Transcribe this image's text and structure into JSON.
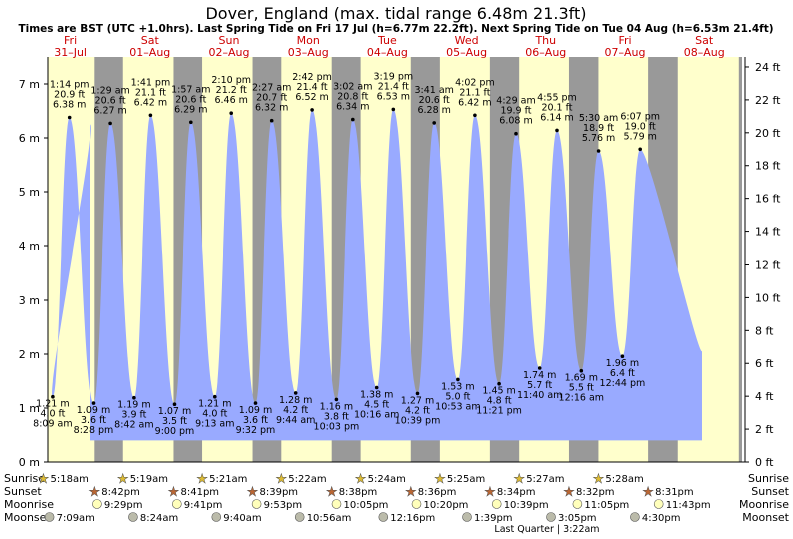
{
  "title": "Dover, England (max. tidal range 6.48m 21.3ft)",
  "subtitle": "Times are BST (UTC +1.0hrs). Last Spring Tide on Fri 17 Jul (h=6.77m 22.2ft). Next Spring Tide on Tue 04 Aug (h=6.53m 21.4ft)",
  "colors": {
    "night": "#999999",
    "day": "#ffffcc",
    "tide": "#99aaff",
    "day_label": "#cc0000",
    "sun_icon": "#ddbb33",
    "sunset_icon": "#bb6633",
    "moon_icon": "#ffffbb",
    "moonset_icon": "#bbbbaa"
  },
  "chart_data": {
    "type": "area",
    "y_left_label_unit": "m",
    "y_right_label_unit": "ft",
    "y_left_ticks": [
      "0 m",
      "1 m",
      "2 m",
      "3 m",
      "4 m",
      "5 m",
      "6 m",
      "7 m"
    ],
    "y_right_ticks": [
      "0 ft",
      "2 ft",
      "4 ft",
      "6 ft",
      "8 ft",
      "10 ft",
      "12 ft",
      "14 ft",
      "16 ft",
      "18 ft",
      "20 ft",
      "22 ft",
      "24 ft"
    ],
    "ylim": [
      0,
      7.5
    ],
    "days": [
      {
        "dow": "Fri",
        "date": "31–Jul"
      },
      {
        "dow": "Sat",
        "date": "01–Aug"
      },
      {
        "dow": "Sun",
        "date": "02–Aug"
      },
      {
        "dow": "Mon",
        "date": "03–Aug"
      },
      {
        "dow": "Tue",
        "date": "04–Aug"
      },
      {
        "dow": "Wed",
        "date": "05–Aug"
      },
      {
        "dow": "Thu",
        "date": "06–Aug"
      },
      {
        "dow": "Fri",
        "date": "07–Aug"
      },
      {
        "dow": "Sat",
        "date": "08–Aug"
      }
    ],
    "daylight": [
      [
        "05:18",
        "20:42"
      ],
      [
        "05:19",
        "20:41"
      ],
      [
        "05:21",
        "20:39"
      ],
      [
        "05:22",
        "20:38"
      ],
      [
        "05:24",
        "20:36"
      ],
      [
        "05:25",
        "20:34"
      ],
      [
        "05:27",
        "20:32"
      ],
      [
        "05:28",
        "20:31"
      ],
      [
        "05:30",
        "24:00"
      ]
    ],
    "tides": [
      {
        "day": 0,
        "time": "08:09",
        "h": 1.21,
        "type": "low",
        "lines": [
          "1.21 m",
          "4.0 ft",
          "8:09 am"
        ]
      },
      {
        "day": 0,
        "time": "13:14",
        "h": 6.38,
        "type": "high",
        "lines": [
          "1:14 pm",
          "20.9 ft",
          "6.38 m"
        ]
      },
      {
        "day": 0,
        "time": "20:28",
        "h": 1.09,
        "type": "low",
        "lines": [
          "1.09 m",
          "3.6 ft",
          "8:28 pm"
        ]
      },
      {
        "day": 1,
        "time": "01:29",
        "h": 6.27,
        "type": "high",
        "lines": [
          "1:29 am",
          "20.6 ft",
          "6.27 m"
        ]
      },
      {
        "day": 1,
        "time": "08:42",
        "h": 1.19,
        "type": "low",
        "lines": [
          "1.19 m",
          "3.9 ft",
          "8:42 am"
        ]
      },
      {
        "day": 1,
        "time": "13:41",
        "h": 6.42,
        "type": "high",
        "lines": [
          "1:41 pm",
          "21.1 ft",
          "6.42 m"
        ]
      },
      {
        "day": 1,
        "time": "21:00",
        "h": 1.07,
        "type": "low",
        "lines": [
          "1.07 m",
          "3.5 ft",
          "9:00 pm"
        ]
      },
      {
        "day": 2,
        "time": "01:57",
        "h": 6.29,
        "type": "high",
        "lines": [
          "1:57 am",
          "20.6 ft",
          "6.29 m"
        ]
      },
      {
        "day": 2,
        "time": "09:13",
        "h": 1.21,
        "type": "low",
        "lines": [
          "1.21 m",
          "4.0 ft",
          "9:13 am"
        ]
      },
      {
        "day": 2,
        "time": "14:10",
        "h": 6.46,
        "type": "high",
        "lines": [
          "2:10 pm",
          "21.2 ft",
          "6.46 m"
        ]
      },
      {
        "day": 2,
        "time": "21:32",
        "h": 1.09,
        "type": "low",
        "lines": [
          "1.09 m",
          "3.6 ft",
          "9:32 pm"
        ]
      },
      {
        "day": 3,
        "time": "02:27",
        "h": 6.32,
        "type": "high",
        "lines": [
          "2:27 am",
          "20.7 ft",
          "6.32 m"
        ]
      },
      {
        "day": 3,
        "time": "09:44",
        "h": 1.28,
        "type": "low",
        "lines": [
          "1.28 m",
          "4.2 ft",
          "9:44 am"
        ]
      },
      {
        "day": 3,
        "time": "14:42",
        "h": 6.52,
        "type": "high",
        "lines": [
          "2:42 pm",
          "21.4 ft",
          "6.52 m"
        ]
      },
      {
        "day": 3,
        "time": "22:03",
        "h": 1.16,
        "type": "low",
        "lines": [
          "1.16 m",
          "3.8 ft",
          "10:03 pm"
        ]
      },
      {
        "day": 4,
        "time": "03:02",
        "h": 6.34,
        "type": "high",
        "lines": [
          "3:02 am",
          "20.8 ft",
          "6.34 m"
        ]
      },
      {
        "day": 4,
        "time": "10:16",
        "h": 1.38,
        "type": "low",
        "lines": [
          "1.38 m",
          "4.5 ft",
          "10:16 am"
        ]
      },
      {
        "day": 4,
        "time": "15:19",
        "h": 6.53,
        "type": "high",
        "lines": [
          "3:19 pm",
          "21.4 ft",
          "6.53 m"
        ]
      },
      {
        "day": 4,
        "time": "22:39",
        "h": 1.27,
        "type": "low",
        "lines": [
          "1.27 m",
          "4.2 ft",
          "10:39 pm"
        ]
      },
      {
        "day": 5,
        "time": "03:41",
        "h": 6.28,
        "type": "high",
        "lines": [
          "3:41 am",
          "20.6 ft",
          "6.28 m"
        ]
      },
      {
        "day": 5,
        "time": "10:53",
        "h": 1.53,
        "type": "low",
        "lines": [
          "1.53 m",
          "5.0 ft",
          "10:53 am"
        ]
      },
      {
        "day": 5,
        "time": "16:02",
        "h": 6.42,
        "type": "high",
        "lines": [
          "4:02 pm",
          "21.1 ft",
          "6.42 m"
        ]
      },
      {
        "day": 5,
        "time": "23:21",
        "h": 1.45,
        "type": "low",
        "lines": [
          "1.45 m",
          "4.8 ft",
          "11:21 pm"
        ]
      },
      {
        "day": 6,
        "time": "04:29",
        "h": 6.08,
        "type": "high",
        "lines": [
          "4:29 am",
          "19.9 ft",
          "6.08 m"
        ]
      },
      {
        "day": 6,
        "time": "11:40",
        "h": 1.74,
        "type": "low",
        "lines": [
          "1.74 m",
          "5.7 ft",
          "11:40 am"
        ]
      },
      {
        "day": 6,
        "time": "16:55",
        "h": 6.14,
        "type": "high",
        "lines": [
          "4:55 pm",
          "20.1 ft",
          "6.14 m"
        ]
      },
      {
        "day": 7,
        "time": "00:16",
        "h": 1.69,
        "type": "low",
        "lines": [
          "1.69 m",
          "5.5 ft",
          "12:16 am"
        ]
      },
      {
        "day": 7,
        "time": "05:30",
        "h": 5.76,
        "type": "high",
        "lines": [
          "5:30 am",
          "18.9 ft",
          "5.76 m"
        ]
      },
      {
        "day": 7,
        "time": "12:44",
        "h": 1.96,
        "type": "low",
        "lines": [
          "1.96 m",
          "6.4 ft",
          "12:44 pm"
        ]
      },
      {
        "day": 7,
        "time": "18:07",
        "h": 5.79,
        "type": "high",
        "lines": [
          "6:07 pm",
          "19.0 ft",
          "5.79 m"
        ]
      }
    ]
  },
  "rows": {
    "labels": {
      "sunrise": "Sunrise",
      "sunset": "Sunset",
      "moonrise": "Moonrise",
      "moonset": "Moonset"
    },
    "sunrise": [
      {
        "day": 0,
        "time": "05:18",
        "label": "5:18am"
      },
      {
        "day": 1,
        "time": "05:19",
        "label": "5:19am"
      },
      {
        "day": 2,
        "time": "05:21",
        "label": "5:21am"
      },
      {
        "day": 3,
        "time": "05:22",
        "label": "5:22am"
      },
      {
        "day": 4,
        "time": "05:24",
        "label": "5:24am"
      },
      {
        "day": 5,
        "time": "05:25",
        "label": "5:25am"
      },
      {
        "day": 6,
        "time": "05:27",
        "label": "5:27am"
      },
      {
        "day": 7,
        "time": "05:28",
        "label": "5:28am"
      }
    ],
    "sunset": [
      {
        "day": 0,
        "time": "20:42",
        "label": "8:42pm"
      },
      {
        "day": 1,
        "time": "20:41",
        "label": "8:41pm"
      },
      {
        "day": 2,
        "time": "20:39",
        "label": "8:39pm"
      },
      {
        "day": 3,
        "time": "20:38",
        "label": "8:38pm"
      },
      {
        "day": 4,
        "time": "20:36",
        "label": "8:36pm"
      },
      {
        "day": 5,
        "time": "20:34",
        "label": "8:34pm"
      },
      {
        "day": 6,
        "time": "20:32",
        "label": "8:32pm"
      },
      {
        "day": 7,
        "time": "20:31",
        "label": "8:31pm"
      }
    ],
    "moonrise": [
      {
        "day": 0,
        "time": "21:29",
        "label": "9:29pm"
      },
      {
        "day": 1,
        "time": "21:41",
        "label": "9:41pm"
      },
      {
        "day": 2,
        "time": "21:53",
        "label": "9:53pm"
      },
      {
        "day": 3,
        "time": "22:05",
        "label": "10:05pm"
      },
      {
        "day": 4,
        "time": "22:20",
        "label": "10:20pm"
      },
      {
        "day": 5,
        "time": "22:39",
        "label": "10:39pm"
      },
      {
        "day": 6,
        "time": "23:05",
        "label": "11:05pm"
      },
      {
        "day": 7,
        "time": "23:43",
        "label": "11:43pm"
      }
    ],
    "moonset": [
      {
        "day": 0,
        "time": "07:09",
        "label": "7:09am"
      },
      {
        "day": 1,
        "time": "08:24",
        "label": "8:24am"
      },
      {
        "day": 2,
        "time": "09:40",
        "label": "9:40am"
      },
      {
        "day": 3,
        "time": "10:56",
        "label": "10:56am"
      },
      {
        "day": 4,
        "time": "12:16",
        "label": "12:16pm"
      },
      {
        "day": 5,
        "time": "13:39",
        "label": "1:39pm"
      },
      {
        "day": 6,
        "time": "15:05",
        "label": "3:05pm"
      },
      {
        "day": 7,
        "time": "16:30",
        "label": "4:30pm"
      }
    ],
    "moon_phase_note": "Last Quarter | 3:22am"
  }
}
